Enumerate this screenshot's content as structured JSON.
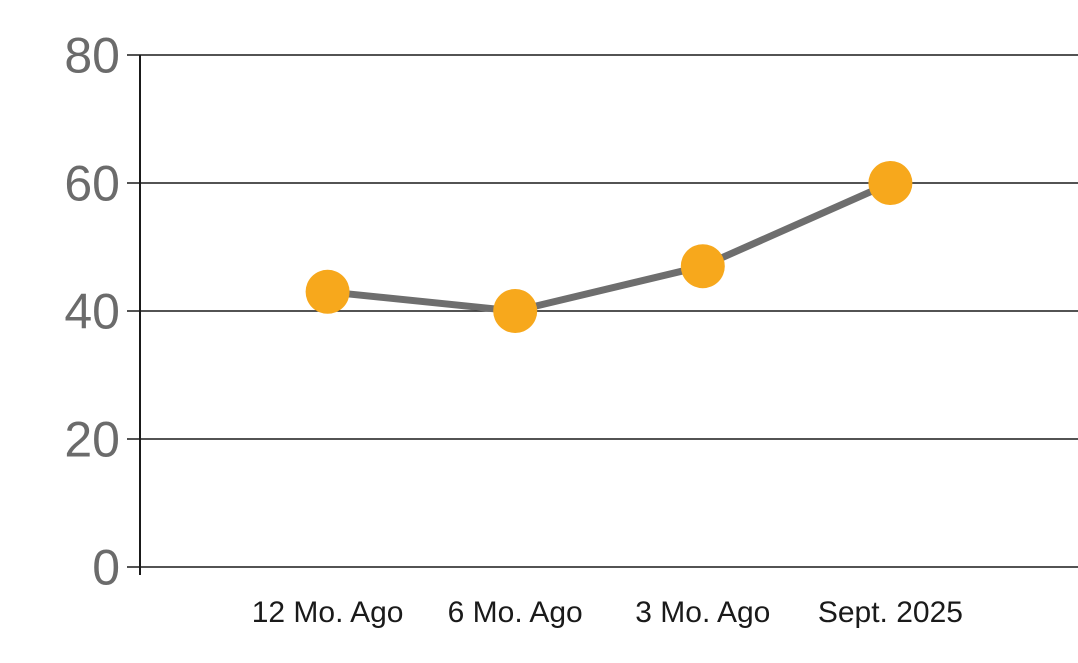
{
  "chart_data": {
    "type": "line",
    "categories": [
      "12 Mo. Ago",
      "6 Mo. Ago",
      "3 Mo. Ago",
      "Sept. 2025"
    ],
    "series": [
      {
        "name": "values",
        "values": [
          43,
          40,
          47,
          60
        ]
      }
    ],
    "title": "",
    "xlabel": "",
    "ylabel": "",
    "ylim": [
      0,
      80
    ],
    "yticks": [
      0,
      20,
      40,
      60,
      80
    ],
    "grid": true,
    "legend_position": "none",
    "colors": {
      "background": "#ffffff",
      "marker": "#f7a81c",
      "line": "#6e6e6e",
      "gridline": "#1a1a1a",
      "axis_line": "#1a1a1a",
      "ytick_label": "#6b6b6b",
      "xtick_label": "#1a1a1a"
    },
    "style": {
      "marker_radius": 22,
      "line_width": 7,
      "gridline_width": 1.6,
      "axis_line_width": 2,
      "ytick_font_size": 50,
      "xtick_font_size": 30
    }
  }
}
